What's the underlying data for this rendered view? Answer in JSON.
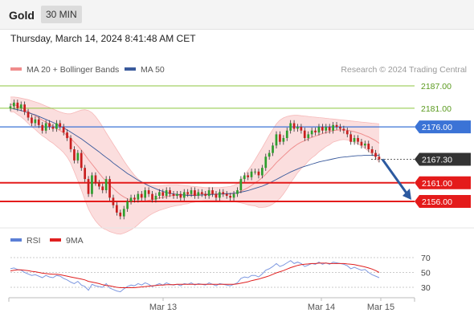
{
  "header": {
    "title": "Gold",
    "timeframe": "30 MIN"
  },
  "datetime": "Thursday, March 14, 2024 8:41:48 AM CET",
  "copyright": "Research © 2024 Trading Central",
  "legend_main": [
    {
      "label": "MA 20 + Bollinger Bands",
      "color": "#f08c8c"
    },
    {
      "label": "MA 50",
      "color": "#3a5a9c"
    }
  ],
  "legend_rsi": [
    {
      "label": "RSI",
      "color": "#5b7fd6"
    },
    {
      "label": "9MA",
      "color": "#e02020"
    }
  ],
  "colors": {
    "up": "#2e9e2e",
    "down": "#c81e1e",
    "resistance": "#8cc63f",
    "support": "#e41b1b",
    "pivot": "#3b73d6",
    "last": "#333333",
    "arrow": "#2c5aa0"
  },
  "chart_data": [
    {
      "type": "candlestick",
      "ylim": [
        2150,
        2190
      ],
      "x_ticks": [
        "Mar 13",
        "Mar 14",
        "Mar 15"
      ],
      "levels": [
        {
          "value": 2187.0,
          "label": "2187.00",
          "kind": "resistance"
        },
        {
          "value": 2181.0,
          "label": "2181.00",
          "kind": "resistance"
        },
        {
          "value": 2176.0,
          "label": "2176.00",
          "kind": "pivot"
        },
        {
          "value": 2167.3,
          "label": "2167.30",
          "kind": "last"
        },
        {
          "value": 2161.0,
          "label": "2161.00",
          "kind": "support"
        },
        {
          "value": 2156.0,
          "label": "2156.00",
          "kind": "support"
        }
      ],
      "close": [
        2181.5,
        2182.5,
        2181,
        2182,
        2180,
        2178.5,
        2177,
        2178,
        2176.5,
        2175,
        2177,
        2176,
        2175.5,
        2177,
        2176,
        2174.5,
        2173,
        2170,
        2167,
        2169,
        2165,
        2162,
        2158,
        2163,
        2161,
        2160,
        2159,
        2162,
        2157,
        2155,
        2153,
        2152,
        2154,
        2156,
        2157,
        2156.5,
        2158,
        2157,
        2159,
        2158,
        2156.5,
        2157.5,
        2158.5,
        2157.5,
        2159,
        2158,
        2157.5,
        2158,
        2157,
        2158.5,
        2158,
        2159,
        2157.5,
        2158.5,
        2158,
        2157.5,
        2159,
        2158,
        2157,
        2158.5,
        2158,
        2157.5,
        2157,
        2158,
        2159,
        2162,
        2163,
        2162.5,
        2164,
        2164,
        2163,
        2165,
        2168,
        2169,
        2171,
        2174,
        2172,
        2173,
        2175,
        2177,
        2175.5,
        2176,
        2175,
        2173,
        2174,
        2175,
        2174.5,
        2176,
        2175,
        2176,
        2175,
        2176.5,
        2176,
        2175.5,
        2175,
        2174,
        2172,
        2173,
        2172,
        2171,
        2171.5,
        2170,
        2169,
        2168,
        2167.3
      ],
      "ma20": [
        2182,
        2182,
        2181.6,
        2181.2,
        2180.7,
        2180.1,
        2179.5,
        2179,
        2178.4,
        2177.8,
        2177.3,
        2176.7,
        2176.2,
        2175.6,
        2175,
        2174.4,
        2173.7,
        2172.9,
        2171.9,
        2170.9,
        2169.8,
        2168.5,
        2167.2,
        2166,
        2164.8,
        2163.6,
        2162.4,
        2161.4,
        2160.4,
        2159.5,
        2158.6,
        2157.8,
        2157.2,
        2156.7,
        2156.3,
        2156,
        2155.9,
        2156,
        2156.1,
        2156.3,
        2156.5,
        2156.7,
        2156.9,
        2157.1,
        2157.3,
        2157.5,
        2157.6,
        2157.7,
        2157.7,
        2157.8,
        2157.8,
        2157.9,
        2157.9,
        2158,
        2158,
        2158,
        2158,
        2158,
        2158,
        2158,
        2158,
        2158,
        2158,
        2158.1,
        2158.3,
        2158.7,
        2159.2,
        2159.7,
        2160.3,
        2161,
        2161.6,
        2162.4,
        2163.3,
        2164.3,
        2165.3,
        2166.4,
        2167.3,
        2168.2,
        2169.1,
        2170,
        2170.7,
        2171.4,
        2171.9,
        2172.3,
        2172.8,
        2173.2,
        2173.5,
        2173.9,
        2174.2,
        2174.5,
        2174.7,
        2175,
        2175.1,
        2175.2,
        2175.2,
        2175.1,
        2174.9,
        2174.7,
        2174.4,
        2174.1,
        2173.7,
        2173.3,
        2172.8,
        2172.3,
        2171.6
      ],
      "bb_upper": [
        2184,
        2184,
        2183.9,
        2183.7,
        2183.5,
        2183.3,
        2183,
        2182.7,
        2182.4,
        2182,
        2181.6,
        2181.2,
        2180.8,
        2180.4,
        2180,
        2179.7,
        2179.5,
        2179.5,
        2179.8,
        2180.2,
        2180.5,
        2180.6,
        2180.4,
        2179.8,
        2178.8,
        2177.5,
        2176,
        2174.4,
        2172.9,
        2171.4,
        2169.9,
        2168.4,
        2166.9,
        2165.5,
        2164.2,
        2163,
        2162,
        2161.3,
        2160.8,
        2160.5,
        2160.3,
        2160.2,
        2160.2,
        2160.3,
        2160.4,
        2160.5,
        2160.5,
        2160.5,
        2160.4,
        2160.3,
        2160.2,
        2160.1,
        2160,
        2159.9,
        2159.8,
        2159.7,
        2159.7,
        2159.7,
        2159.7,
        2159.7,
        2159.8,
        2159.9,
        2160,
        2160.3,
        2160.8,
        2161.8,
        2163,
        2164.3,
        2165.7,
        2167.2,
        2168.8,
        2170.4,
        2172.1,
        2173.8,
        2175.3,
        2176.8,
        2177.8,
        2178.4,
        2178.8,
        2179,
        2179.1,
        2179.1,
        2179,
        2178.9,
        2178.8,
        2178.7,
        2178.6,
        2178.5,
        2178.4,
        2178.3,
        2178.2,
        2178.1,
        2178,
        2177.9,
        2177.8,
        2177.7,
        2177.6,
        2177.5,
        2177.4,
        2177.3,
        2177.2,
        2177.1,
        2177,
        2176.9,
        2176.8
      ],
      "bb_lower": [
        2180,
        2180,
        2179.3,
        2178.7,
        2177.9,
        2176.9,
        2176,
        2175.3,
        2174.4,
        2173.6,
        2173,
        2172.2,
        2171.6,
        2170.8,
        2170,
        2169.1,
        2167.9,
        2166.3,
        2164,
        2161.6,
        2159.1,
        2156.4,
        2154,
        2152.2,
        2150.8,
        2149.7,
        2148.8,
        2148.4,
        2147.9,
        2147.6,
        2147.3,
        2147.2,
        2147.5,
        2147.9,
        2148.4,
        2149,
        2149.8,
        2150.7,
        2151.4,
        2152.1,
        2152.7,
        2153.2,
        2153.6,
        2153.9,
        2154.2,
        2154.5,
        2154.7,
        2154.9,
        2155,
        2155.3,
        2155.4,
        2155.7,
        2155.8,
        2156.1,
        2156.2,
        2156.3,
        2156.3,
        2156.3,
        2156.3,
        2156.3,
        2156.2,
        2156.1,
        2156,
        2155.9,
        2155.8,
        2155.6,
        2155.4,
        2155.1,
        2154.9,
        2154.8,
        2154.4,
        2154.4,
        2154.5,
        2154.8,
        2155.3,
        2156,
        2156.8,
        2158,
        2159.4,
        2161,
        2162.3,
        2163.7,
        2164.8,
        2165.7,
        2166.8,
        2167.7,
        2168.4,
        2169.3,
        2170,
        2170.7,
        2171.2,
        2171.9,
        2172.2,
        2172.5,
        2172.6,
        2172.5,
        2172.2,
        2171.9,
        2171.4,
        2170.9,
        2170.2,
        2169.5,
        2168.6,
        2167.7,
        2166.4
      ],
      "ma50": [
        2181,
        2180.8,
        2180.6,
        2180.4,
        2180.1,
        2179.8,
        2179.5,
        2179.2,
        2178.8,
        2178.4,
        2178,
        2177.6,
        2177.2,
        2176.7,
        2176.2,
        2175.7,
        2175.2,
        2174.6,
        2174,
        2173.4,
        2172.8,
        2172.1,
        2171.4,
        2170.7,
        2170,
        2169.3,
        2168.5,
        2167.8,
        2167.1,
        2166.3,
        2165.6,
        2164.9,
        2164.2,
        2163.5,
        2162.9,
        2162.3,
        2161.7,
        2161.2,
        2160.7,
        2160.2,
        2159.8,
        2159.4,
        2159,
        2158.7,
        2158.4,
        2158.2,
        2158,
        2157.9,
        2157.8,
        2157.7,
        2157.6,
        2157.6,
        2157.6,
        2157.7,
        2157.7,
        2157.8,
        2157.8,
        2157.9,
        2157.9,
        2158,
        2158,
        2158.1,
        2158.1,
        2158.2,
        2158.3,
        2158.5,
        2158.7,
        2158.9,
        2159.2,
        2159.5,
        2159.8,
        2160.1,
        2160.5,
        2160.9,
        2161.4,
        2161.9,
        2162.4,
        2162.9,
        2163.4,
        2163.9,
        2164.3,
        2164.7,
        2165.1,
        2165.4,
        2165.7,
        2166,
        2166.3,
        2166.6,
        2166.8,
        2167,
        2167.2,
        2167.4,
        2167.6,
        2167.8,
        2167.9,
        2168,
        2168.1,
        2168.2,
        2168.3,
        2168.3,
        2168.4,
        2168.4,
        2168.4,
        2168.4,
        2168.4
      ]
    },
    {
      "type": "line",
      "ylim": [
        20,
        80
      ],
      "y_ticks": [
        "70",
        "50",
        "30"
      ],
      "rsi": [
        55,
        56,
        54,
        53,
        50,
        48,
        46,
        47,
        45,
        43,
        46,
        44,
        43,
        46,
        45,
        42,
        40,
        37,
        35,
        38,
        33,
        31,
        26,
        34,
        32,
        31,
        30,
        35,
        29,
        27,
        25,
        24,
        28,
        31,
        33,
        32,
        35,
        33,
        36,
        34,
        31,
        33,
        35,
        33,
        36,
        34,
        33,
        34,
        32,
        35,
        34,
        36,
        33,
        35,
        34,
        33,
        36,
        34,
        32,
        35,
        34,
        33,
        32,
        34,
        36,
        42,
        44,
        43,
        46,
        46,
        44,
        48,
        53,
        55,
        58,
        62,
        58,
        60,
        63,
        66,
        62,
        64,
        62,
        58,
        60,
        62,
        61,
        64,
        61,
        63,
        61,
        64,
        63,
        62,
        61,
        59,
        55,
        57,
        55,
        53,
        54,
        50,
        47,
        45,
        43
      ],
      "ma9": [
        52,
        53,
        53.5,
        53.5,
        53,
        52.5,
        51.5,
        51,
        50,
        49,
        48.5,
        48,
        47.5,
        47.5,
        47,
        46,
        45,
        44,
        43,
        42,
        41,
        40,
        38,
        37,
        36,
        35,
        33.5,
        32.5,
        32,
        31,
        30,
        29.5,
        29.5,
        29.5,
        29.5,
        29.5,
        30,
        30.5,
        31,
        31.5,
        32,
        32.5,
        33,
        33,
        33.5,
        33.5,
        33.5,
        34,
        34,
        34,
        34,
        34,
        34,
        34,
        34,
        34,
        34,
        34,
        34,
        34,
        34,
        34,
        34,
        34,
        34.5,
        35.5,
        36.5,
        37.5,
        39,
        40,
        41,
        42.5,
        44,
        45.5,
        47.5,
        49.5,
        51,
        52.5,
        54.5,
        56.5,
        58,
        59.5,
        60.5,
        61,
        61.5,
        62,
        62,
        62.5,
        62.5,
        62.5,
        62,
        62,
        62,
        62,
        62,
        61.5,
        61,
        60.5,
        59.5,
        58.5,
        57.5,
        56,
        54.5,
        52.5,
        50
      ]
    }
  ]
}
